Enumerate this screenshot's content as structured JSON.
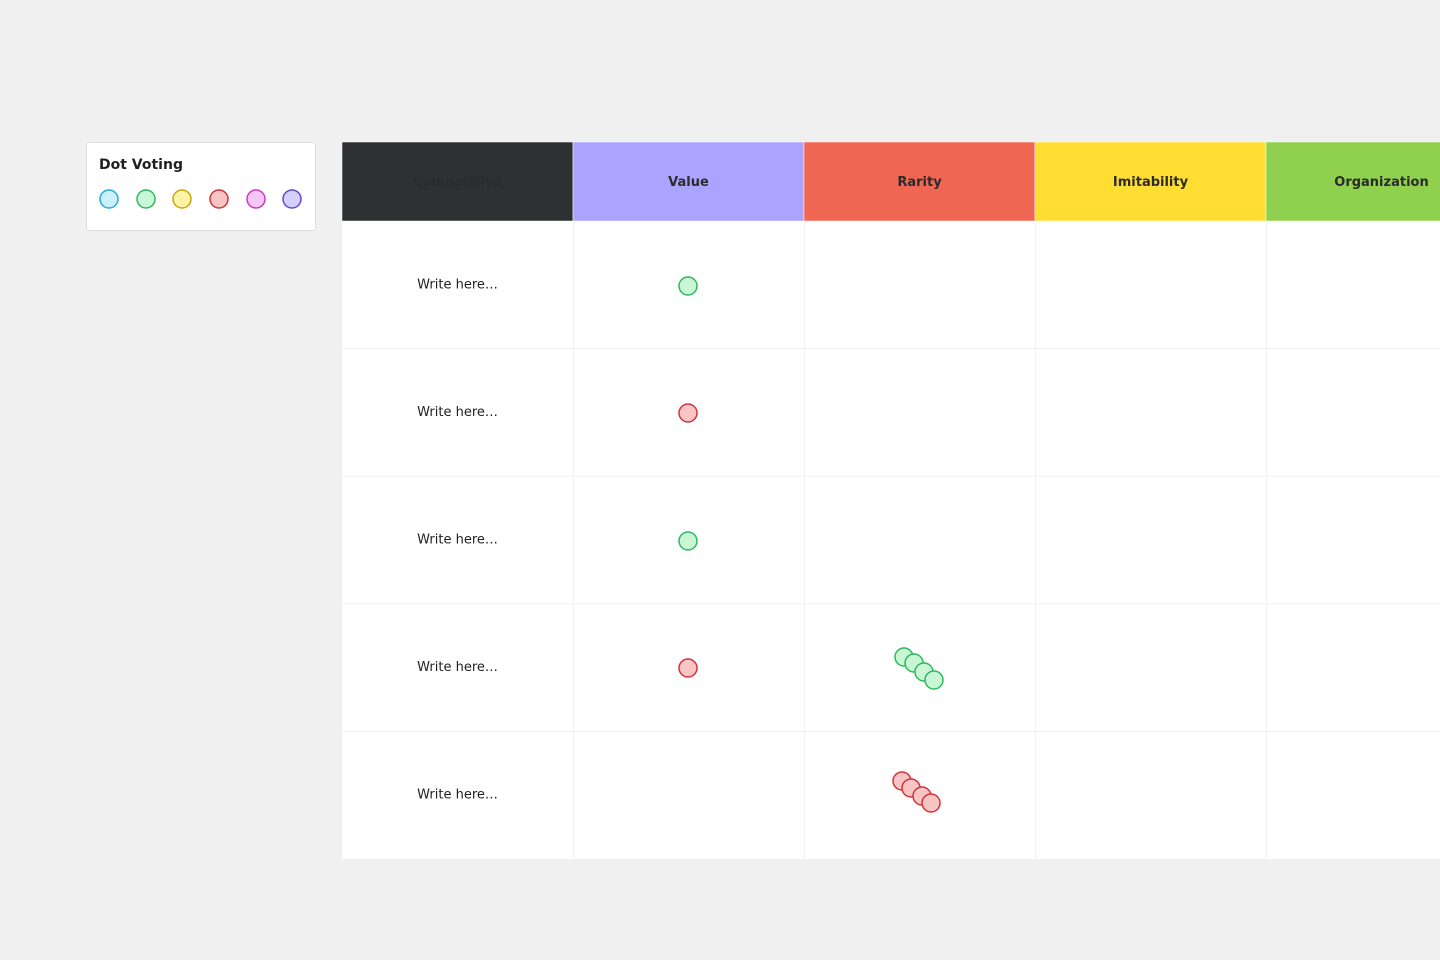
{
  "panel": {
    "title": "Dot Voting"
  },
  "table": {
    "headers": [
      "Competitive",
      "Value",
      "Rarity",
      "Imitability",
      "Organization"
    ],
    "rows": [
      [
        "Write here…"
      ],
      [
        "Write here…"
      ],
      [
        "Write here…"
      ],
      [
        "Write here…"
      ],
      [
        "Write here…"
      ]
    ]
  }
}
